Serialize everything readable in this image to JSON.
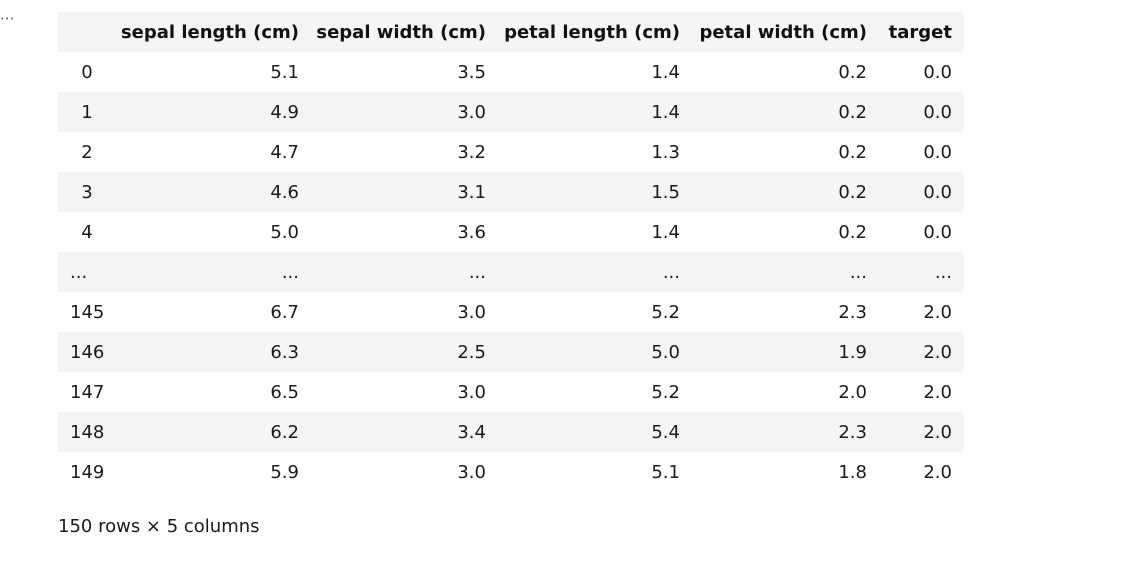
{
  "cell": {
    "toggle_label": "···"
  },
  "table": {
    "columns": [
      "",
      "sepal length (cm)",
      "sepal width (cm)",
      "petal length (cm)",
      "petal width (cm)",
      "target"
    ],
    "rows": [
      [
        "0",
        "5.1",
        "3.5",
        "1.4",
        "0.2",
        "0.0"
      ],
      [
        "1",
        "4.9",
        "3.0",
        "1.4",
        "0.2",
        "0.0"
      ],
      [
        "2",
        "4.7",
        "3.2",
        "1.3",
        "0.2",
        "0.0"
      ],
      [
        "3",
        "4.6",
        "3.1",
        "1.5",
        "0.2",
        "0.0"
      ],
      [
        "4",
        "5.0",
        "3.6",
        "1.4",
        "0.2",
        "0.0"
      ],
      [
        "...",
        "...",
        "...",
        "...",
        "...",
        "..."
      ],
      [
        "145",
        "6.7",
        "3.0",
        "5.2",
        "2.3",
        "2.0"
      ],
      [
        "146",
        "6.3",
        "2.5",
        "5.0",
        "1.9",
        "2.0"
      ],
      [
        "147",
        "6.5",
        "3.0",
        "5.2",
        "2.0",
        "2.0"
      ],
      [
        "148",
        "6.2",
        "3.4",
        "5.4",
        "2.3",
        "2.0"
      ],
      [
        "149",
        "5.9",
        "3.0",
        "5.1",
        "1.8",
        "2.0"
      ]
    ]
  },
  "shape_note": "150 rows × 5 columns"
}
